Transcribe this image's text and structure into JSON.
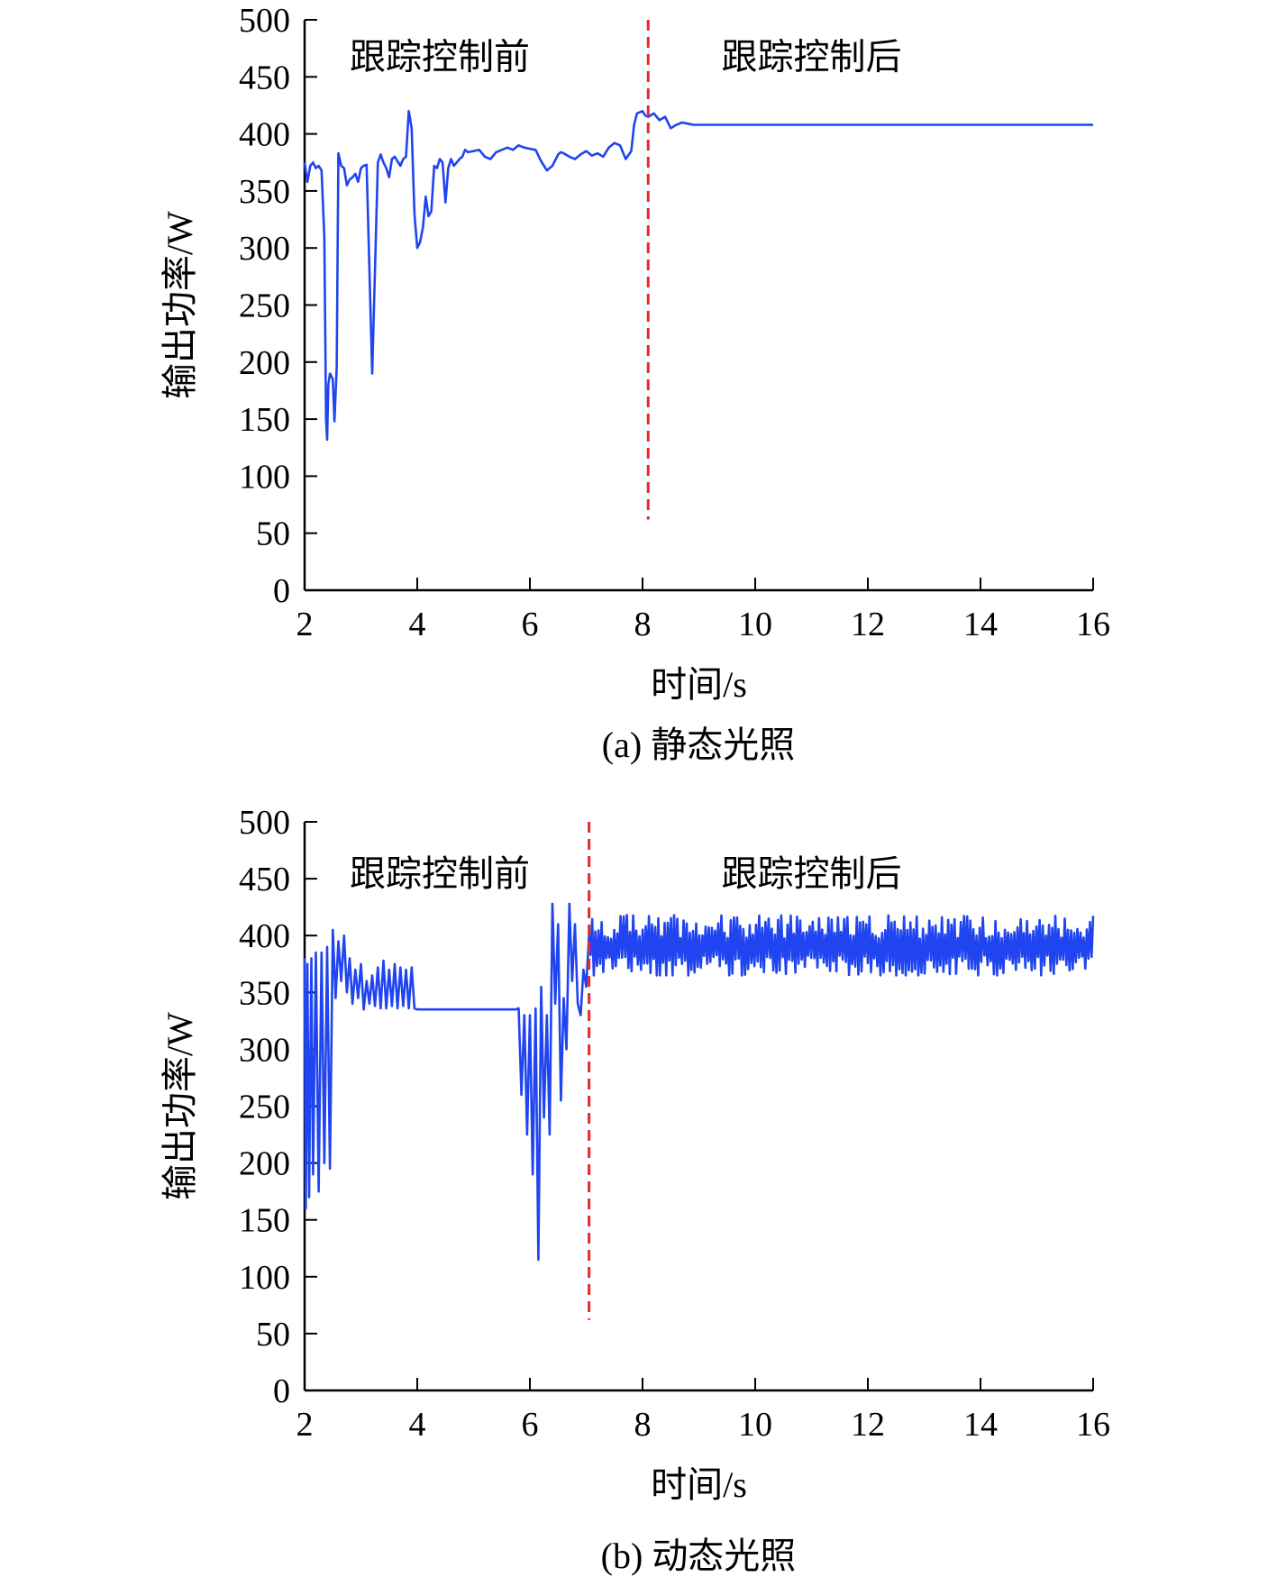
{
  "figure": {
    "captions": [
      "(a) 静态光照",
      "(b) 动态光照"
    ]
  },
  "chart_data": [
    {
      "type": "line",
      "caption": "(a) 静态光照",
      "xlabel": "时间/s",
      "ylabel": "输出功率/W",
      "xlim": [
        2,
        16
      ],
      "ylim": [
        0,
        500
      ],
      "xticks": [
        2,
        4,
        6,
        8,
        10,
        12,
        14,
        16
      ],
      "yticks": [
        0,
        50,
        100,
        150,
        200,
        250,
        300,
        350,
        400,
        450,
        500
      ],
      "annotations": [
        {
          "text": "跟踪控制前",
          "x": 4.4,
          "y": 468
        },
        {
          "text": "跟踪控制后",
          "x": 11.0,
          "y": 468
        }
      ],
      "divider": {
        "x": 8.1,
        "y_range": [
          62,
          500
        ],
        "color": "#e8282b"
      },
      "series": [
        {
          "color": "#1f44f0",
          "x": [
            2.0,
            2.05,
            2.1,
            2.15,
            2.2,
            2.25,
            2.3,
            2.35,
            2.38,
            2.4,
            2.42,
            2.45,
            2.5,
            2.53,
            2.57,
            2.6,
            2.65,
            2.7,
            2.75,
            2.8,
            2.85,
            2.9,
            2.95,
            3.0,
            3.05,
            3.1,
            3.2,
            3.3,
            3.35,
            3.4,
            3.45,
            3.5,
            3.55,
            3.6,
            3.65,
            3.7,
            3.75,
            3.8,
            3.85,
            3.9,
            3.95,
            4.0,
            4.05,
            4.1,
            4.15,
            4.2,
            4.25,
            4.3,
            4.35,
            4.4,
            4.45,
            4.5,
            4.55,
            4.6,
            4.65,
            4.7,
            4.75,
            4.8,
            4.85,
            4.9,
            5.0,
            5.1,
            5.2,
            5.3,
            5.4,
            5.5,
            5.6,
            5.7,
            5.8,
            5.9,
            6.0,
            6.1,
            6.2,
            6.3,
            6.4,
            6.5,
            6.55,
            6.6,
            6.7,
            6.8,
            6.9,
            7.0,
            7.1,
            7.2,
            7.3,
            7.4,
            7.5,
            7.6,
            7.7,
            7.8,
            7.85,
            7.9,
            8.0,
            8.05,
            8.1,
            8.2,
            8.3,
            8.4,
            8.5,
            8.6,
            8.7,
            8.8,
            8.9,
            9.0,
            10.0,
            11.0,
            12.0,
            13.0,
            14.0,
            15.0,
            16.0
          ],
          "y": [
            375,
            358,
            372,
            375,
            370,
            372,
            368,
            310,
            150,
            132,
            180,
            190,
            185,
            148,
            195,
            383,
            372,
            370,
            355,
            360,
            362,
            365,
            358,
            370,
            372,
            373,
            190,
            375,
            382,
            375,
            370,
            362,
            378,
            380,
            376,
            372,
            378,
            380,
            420,
            405,
            330,
            300,
            305,
            318,
            345,
            328,
            332,
            372,
            370,
            378,
            375,
            340,
            370,
            378,
            372,
            375,
            378,
            380,
            386,
            384,
            385,
            386,
            380,
            378,
            384,
            386,
            388,
            386,
            390,
            388,
            387,
            386,
            376,
            368,
            372,
            382,
            384,
            383,
            380,
            378,
            382,
            385,
            381,
            383,
            380,
            388,
            392,
            390,
            378,
            385,
            408,
            418,
            420,
            416,
            415,
            418,
            412,
            415,
            405,
            408,
            410,
            409,
            408,
            408,
            408,
            408,
            408,
            408,
            408,
            408,
            408
          ]
        }
      ]
    },
    {
      "type": "line",
      "caption": "(b) 动态光照",
      "xlabel": "时间/s",
      "ylabel": "输出功率/W",
      "xlim": [
        2,
        16
      ],
      "ylim": [
        0,
        500
      ],
      "xticks": [
        2,
        4,
        6,
        8,
        10,
        12,
        14,
        16
      ],
      "yticks": [
        0,
        50,
        100,
        150,
        200,
        250,
        300,
        350,
        400,
        450,
        500
      ],
      "annotations": [
        {
          "text": "跟踪控制前",
          "x": 4.4,
          "y": 455
        },
        {
          "text": "跟踪控制后",
          "x": 11.0,
          "y": 455
        }
      ],
      "divider": {
        "x": 7.05,
        "y_range": [
          62,
          500
        ],
        "color": "#e8282b"
      },
      "series": [
        {
          "color": "#1f44f0",
          "x": [
            2.0,
            2.02,
            2.05,
            2.08,
            2.12,
            2.15,
            2.2,
            2.25,
            2.3,
            2.35,
            2.4,
            2.45,
            2.5,
            2.55,
            2.6,
            2.65,
            2.7,
            2.75,
            2.8,
            2.85,
            2.9,
            2.95,
            3.0,
            3.05,
            3.1,
            3.15,
            3.2,
            3.25,
            3.3,
            3.35,
            3.4,
            3.45,
            3.5,
            3.55,
            3.6,
            3.65,
            3.7,
            3.75,
            3.8,
            3.85,
            3.9,
            3.95,
            4.0,
            4.05,
            4.1,
            4.15,
            5.0,
            5.7,
            5.75,
            5.8,
            5.85,
            5.9,
            5.95,
            6.0,
            6.05,
            6.1,
            6.15,
            6.2,
            6.25,
            6.3,
            6.35,
            6.4,
            6.45,
            6.5,
            6.55,
            6.6,
            6.65,
            6.7,
            6.75,
            6.8,
            6.85,
            6.9,
            6.95,
            7.0,
            7.05
          ],
          "y": [
            380,
            160,
            375,
            170,
            380,
            190,
            385,
            175,
            385,
            200,
            390,
            195,
            405,
            345,
            395,
            360,
            400,
            350,
            380,
            340,
            370,
            345,
            375,
            335,
            360,
            340,
            365,
            338,
            372,
            336,
            378,
            336,
            370,
            338,
            375,
            336,
            372,
            338,
            370,
            336,
            372,
            336,
            335,
            335,
            335,
            335,
            335,
            335,
            335,
            336,
            260,
            330,
            225,
            330,
            190,
            336,
            115,
            355,
            240,
            330,
            225,
            428,
            340,
            410,
            255,
            345,
            300,
            428,
            360,
            410,
            340,
            330,
            370,
            355,
            400
          ]
        }
      ],
      "noise_band_after_control": {
        "x_range": [
          7.05,
          16.0
        ],
        "y_center": 390,
        "y_min": 365,
        "y_max": 422
      }
    }
  ]
}
